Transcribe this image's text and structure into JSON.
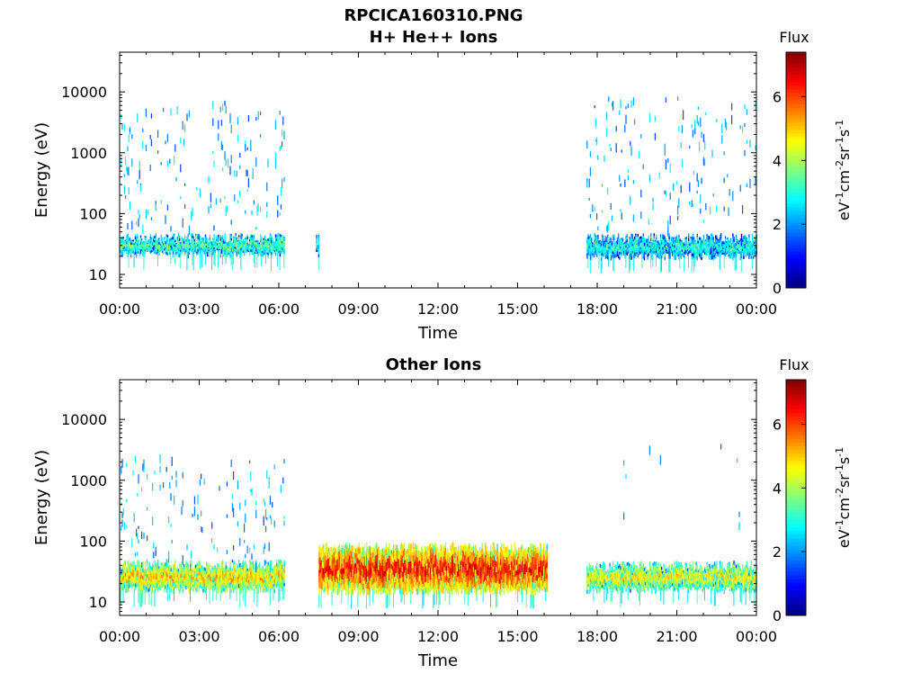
{
  "figure_title": "RPCICA160310.PNG",
  "colors": {
    "colormap": [
      "#00007f",
      "#0000ff",
      "#007fff",
      "#00ffff",
      "#7fff7f",
      "#ffff00",
      "#ff7f00",
      "#ff0000",
      "#7f0000"
    ],
    "axis": "#000000",
    "background": "#ffffff"
  },
  "chart_data": [
    {
      "type": "heatmap",
      "title": "H+ He++ Ions",
      "xlabel": "Time",
      "ylabel": "Energy (eV)",
      "x_ticks": [
        "00:00",
        "03:00",
        "06:00",
        "09:00",
        "12:00",
        "15:00",
        "18:00",
        "21:00",
        "00:00"
      ],
      "x_range_hours": [
        0,
        24
      ],
      "y_scale": "log",
      "y_ticks": [
        "10",
        "100",
        "1000",
        "10000"
      ],
      "y_range_eV": [
        6,
        45000
      ],
      "colorbar": {
        "label": "Flux",
        "units": "eV-1cm-2sr-1s-1",
        "ticks": [
          "0",
          "2",
          "4",
          "6"
        ],
        "range": [
          0,
          7.4
        ]
      },
      "segments": [
        {
          "start_hour": 0.0,
          "end_hour": 6.2,
          "band_low_eV": 22,
          "band_high_eV": 40,
          "band_flux": 3.6,
          "scatter_low_eV": 60,
          "scatter_high_eV": 8000,
          "scatter_flux": 1.8,
          "scatter_density": 0.55
        },
        {
          "start_hour": 7.4,
          "end_hour": 7.5,
          "band_low_eV": 22,
          "band_high_eV": 38,
          "band_flux": 3.0,
          "scatter_low_eV": 0,
          "scatter_high_eV": 0,
          "scatter_flux": 0,
          "scatter_density": 0
        },
        {
          "start_hour": 17.6,
          "end_hour": 24.0,
          "band_low_eV": 20,
          "band_high_eV": 40,
          "band_flux": 3.2,
          "scatter_low_eV": 60,
          "scatter_high_eV": 9000,
          "scatter_flux": 1.8,
          "scatter_density": 0.5
        }
      ]
    },
    {
      "type": "heatmap",
      "title": "Other Ions",
      "xlabel": "Time",
      "ylabel": "Energy (eV)",
      "x_ticks": [
        "00:00",
        "03:00",
        "06:00",
        "09:00",
        "12:00",
        "15:00",
        "18:00",
        "21:00",
        "00:00"
      ],
      "x_range_hours": [
        0,
        24
      ],
      "y_scale": "log",
      "y_ticks": [
        "10",
        "100",
        "1000",
        "10000"
      ],
      "y_range_eV": [
        6,
        45000
      ],
      "colorbar": {
        "label": "Flux",
        "units": "eV-1cm-2sr-1s-1",
        "ticks": [
          "0",
          "2",
          "4",
          "6"
        ],
        "range": [
          0,
          7.4
        ]
      },
      "segments": [
        {
          "start_hour": 0.0,
          "end_hour": 6.2,
          "band_low_eV": 16,
          "band_high_eV": 42,
          "band_flux": 5.2,
          "scatter_low_eV": 40,
          "scatter_high_eV": 3000,
          "scatter_flux": 1.8,
          "scatter_density": 0.4
        },
        {
          "start_hour": 7.5,
          "end_hour": 16.1,
          "band_low_eV": 15,
          "band_high_eV": 80,
          "band_flux": 6.6,
          "scatter_low_eV": 0,
          "scatter_high_eV": 0,
          "scatter_flux": 0,
          "scatter_density": 0
        },
        {
          "start_hour": 17.6,
          "end_hour": 24.0,
          "band_low_eV": 16,
          "band_high_eV": 40,
          "band_flux": 4.8,
          "scatter_low_eV": 100,
          "scatter_high_eV": 4000,
          "scatter_flux": 1.8,
          "scatter_density": 0.06
        }
      ]
    }
  ]
}
